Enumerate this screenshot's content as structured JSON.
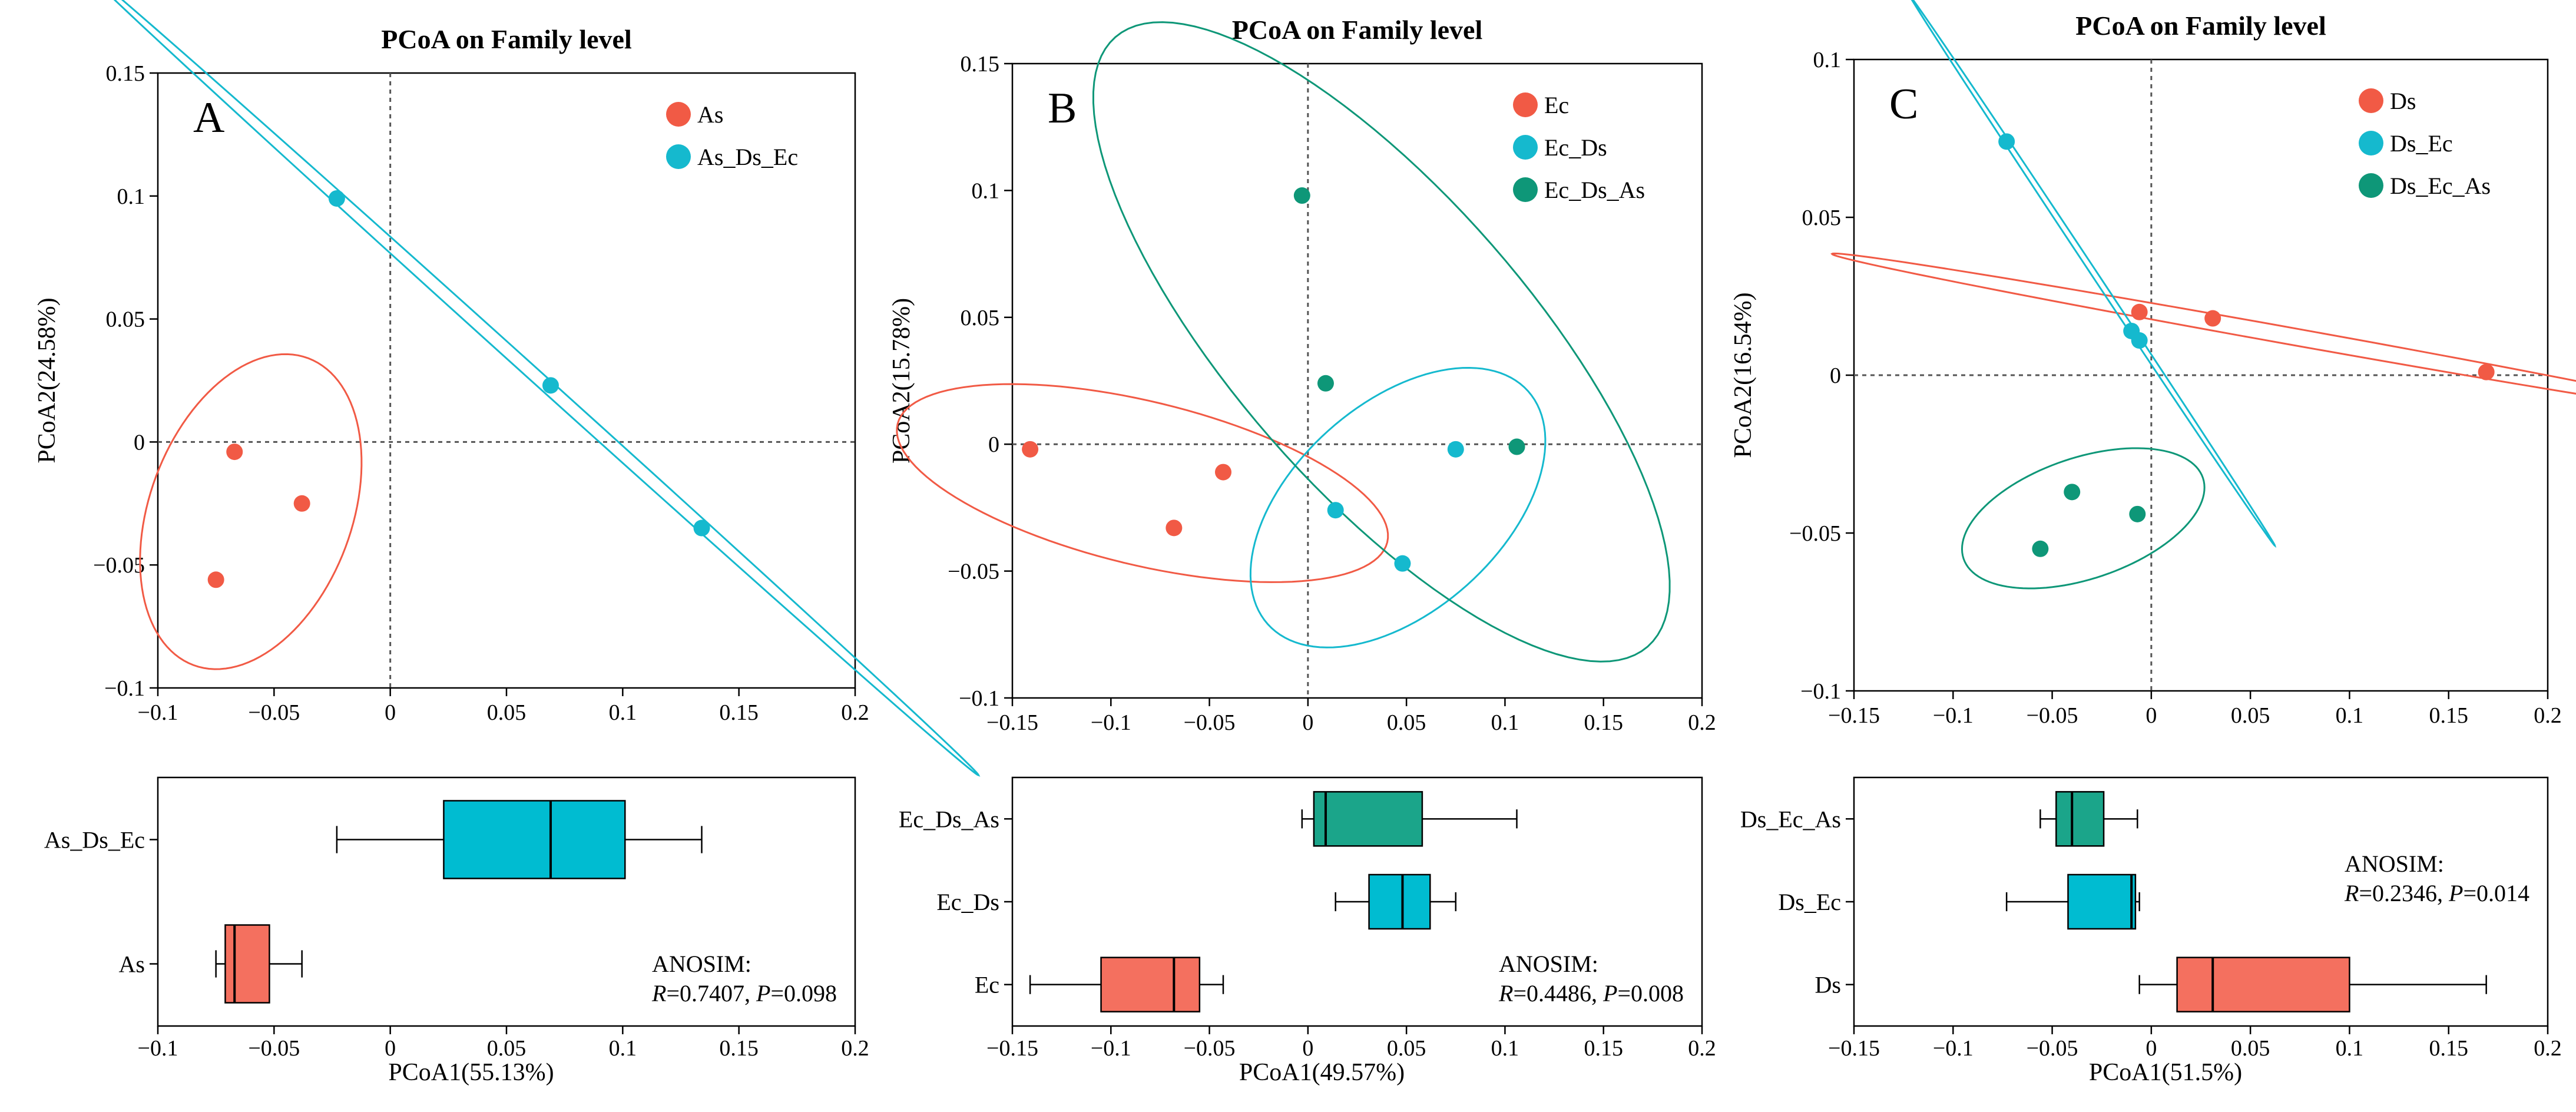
{
  "colors": {
    "red": "#F15A45",
    "cyan": "#15B9CE",
    "green": "#0E9778",
    "box_red": "#F4705F",
    "box_cyan": "#00BCD1",
    "box_green": "#1BA58A"
  },
  "chart_data": [
    {
      "type": "scatter",
      "panel_label": "A",
      "title": "PCoA on Family level",
      "xlabel": "PCoA1(55.13%)",
      "ylabel": "PCoA2(24.58%)",
      "xlim": [
        -0.1,
        0.2
      ],
      "ylim": [
        -0.1,
        0.15
      ],
      "xticks": [
        -0.1,
        -0.05,
        0,
        0.05,
        0.1,
        0.15,
        0.2
      ],
      "xtick_labels": [
        "−0.1",
        "−0.05",
        "0",
        "0.05",
        "0.1",
        "0.15",
        "0.2"
      ],
      "yticks": [
        -0.1,
        -0.05,
        0,
        0.05,
        0.1,
        0.15
      ],
      "ytick_labels": [
        "−0.1",
        "−0.05",
        "0",
        "0.05",
        "0.1",
        "0.15"
      ],
      "legend": "top-right",
      "series": [
        {
          "name": "As",
          "color": "#F15A45",
          "points": [
            [
              -0.067,
              -0.004
            ],
            [
              -0.038,
              -0.025
            ],
            [
              -0.075,
              -0.056
            ]
          ]
        },
        {
          "name": "As_Ds_Ec",
          "color": "#15B9CE",
          "points": [
            [
              -0.023,
              0.099
            ],
            [
              0.069,
              0.023
            ],
            [
              0.134,
              -0.035
            ]
          ]
        }
      ],
      "boxplot": {
        "xlabel": "PCoA1(55.13%)",
        "categories": [
          "As_Ds_Ec",
          "As"
        ],
        "boxes": [
          {
            "name": "As_Ds_Ec",
            "min": -0.023,
            "q1": 0.023,
            "median": 0.069,
            "q3": 0.101,
            "max": 0.134,
            "color": "#00BCD1"
          },
          {
            "name": "As",
            "min": -0.075,
            "q1": -0.071,
            "median": -0.067,
            "q3": -0.052,
            "max": -0.038,
            "color": "#F4705F"
          }
        ],
        "anosim_title": "ANOSIM:",
        "R_label": "R",
        "R_value": "=0.7407, ",
        "P_label": "P",
        "P_value": "=0.098",
        "anosim_pos": "bottom-right"
      }
    },
    {
      "type": "scatter",
      "panel_label": "B",
      "title": "PCoA on Family level",
      "xlabel": "PCoA1(49.57%)",
      "ylabel": "PCoA2(15.78%)",
      "xlim": [
        -0.15,
        0.2
      ],
      "ylim": [
        -0.1,
        0.15
      ],
      "xticks": [
        -0.15,
        -0.1,
        -0.05,
        0,
        0.05,
        0.1,
        0.15,
        0.2
      ],
      "xtick_labels": [
        "−0.15",
        "−0.1",
        "−0.05",
        "0",
        "0.05",
        "0.1",
        "0.15",
        "0.2"
      ],
      "yticks": [
        -0.1,
        -0.05,
        0,
        0.05,
        0.1,
        0.15
      ],
      "ytick_labels": [
        "−0.1",
        "−0.05",
        "0",
        "0.05",
        "0.1",
        "0.15"
      ],
      "legend": "top-right",
      "series": [
        {
          "name": "Ec",
          "color": "#F15A45",
          "points": [
            [
              -0.141,
              -0.002
            ],
            [
              -0.043,
              -0.011
            ],
            [
              -0.068,
              -0.033
            ]
          ]
        },
        {
          "name": "Ec_Ds",
          "color": "#15B9CE",
          "points": [
            [
              0.075,
              -0.002
            ],
            [
              0.014,
              -0.026
            ],
            [
              0.048,
              -0.047
            ]
          ]
        },
        {
          "name": "Ec_Ds_As",
          "color": "#0E9778",
          "points": [
            [
              -0.003,
              0.098
            ],
            [
              0.009,
              0.024
            ],
            [
              0.106,
              -0.001
            ]
          ]
        }
      ],
      "boxplot": {
        "xlabel": "PCoA1(49.57%)",
        "categories": [
          "Ec_Ds_As",
          "Ec_Ds",
          "Ec"
        ],
        "boxes": [
          {
            "name": "Ec_Ds_As",
            "min": -0.003,
            "q1": 0.003,
            "median": 0.009,
            "q3": 0.058,
            "max": 0.106,
            "color": "#1BA58A"
          },
          {
            "name": "Ec_Ds",
            "min": 0.014,
            "q1": 0.031,
            "median": 0.048,
            "q3": 0.062,
            "max": 0.075,
            "color": "#00BCD1"
          },
          {
            "name": "Ec",
            "min": -0.141,
            "q1": -0.105,
            "median": -0.068,
            "q3": -0.055,
            "max": -0.043,
            "color": "#F4705F"
          }
        ],
        "anosim_title": "ANOSIM:",
        "R_label": "R",
        "R_value": "=0.4486, ",
        "P_label": "P",
        "P_value": "=0.008",
        "anosim_pos": "bottom-right"
      }
    },
    {
      "type": "scatter",
      "panel_label": "C",
      "title": "PCoA on Family level",
      "xlabel": "PCoA1(51.5%)",
      "ylabel": "PCoA2(16.54%)",
      "xlim": [
        -0.15,
        0.2
      ],
      "ylim": [
        -0.1,
        0.1
      ],
      "xticks": [
        -0.15,
        -0.1,
        -0.05,
        0,
        0.05,
        0.1,
        0.15,
        0.2
      ],
      "xtick_labels": [
        "−0.15",
        "−0.1",
        "−0.05",
        "0",
        "0.05",
        "0.1",
        "0.15",
        "0.2"
      ],
      "yticks": [
        -0.1,
        -0.05,
        0,
        0.05,
        0.1
      ],
      "ytick_labels": [
        "−0.1",
        "−0.05",
        "0",
        "0.05",
        "0.1"
      ],
      "legend": "top-right",
      "series": [
        {
          "name": "Ds",
          "color": "#F15A45",
          "points": [
            [
              -0.006,
              0.02
            ],
            [
              0.031,
              0.018
            ],
            [
              0.169,
              0.001
            ]
          ]
        },
        {
          "name": "Ds_Ec",
          "color": "#15B9CE",
          "points": [
            [
              -0.073,
              0.074
            ],
            [
              -0.01,
              0.014
            ],
            [
              -0.006,
              0.011
            ]
          ]
        },
        {
          "name": "Ds_Ec_As",
          "color": "#0E9778",
          "points": [
            [
              -0.04,
              -0.037
            ],
            [
              -0.007,
              -0.044
            ],
            [
              -0.056,
              -0.055
            ]
          ]
        }
      ],
      "boxplot": {
        "xlabel": "PCoA1(51.5%)",
        "categories": [
          "Ds_Ec_As",
          "Ds_Ec",
          "Ds"
        ],
        "boxes": [
          {
            "name": "Ds_Ec_As",
            "min": -0.056,
            "q1": -0.048,
            "median": -0.04,
            "q3": -0.024,
            "max": -0.007,
            "color": "#1BA58A"
          },
          {
            "name": "Ds_Ec",
            "min": -0.073,
            "q1": -0.042,
            "median": -0.01,
            "q3": -0.008,
            "max": -0.006,
            "color": "#00BCD1"
          },
          {
            "name": "Ds",
            "min": -0.006,
            "q1": 0.013,
            "median": 0.031,
            "q3": 0.1,
            "max": 0.169,
            "color": "#F4705F"
          }
        ],
        "anosim_title": "ANOSIM:",
        "R_label": "R",
        "R_value": "=0.2346, ",
        "P_label": "P",
        "P_value": "=0.014",
        "anosim_pos": "top-right"
      }
    }
  ]
}
